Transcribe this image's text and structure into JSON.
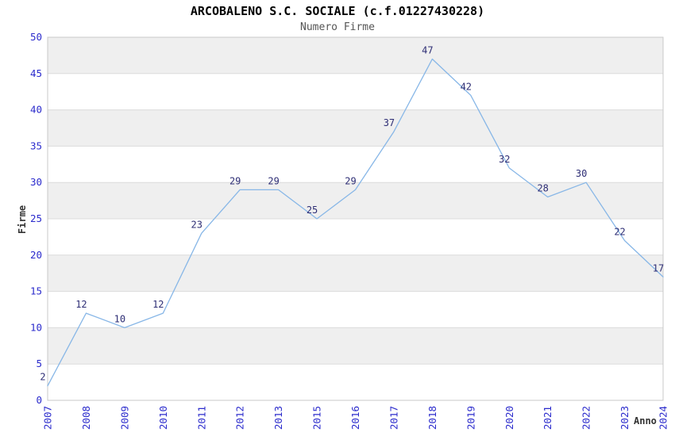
{
  "chart_data": {
    "type": "line",
    "title": "ARCOBALENO S.C. SOCIALE (c.f.01227430228)",
    "subtitle": "Numero Firme",
    "xlabel": "Anno",
    "ylabel": "Firme",
    "categories": [
      "2007",
      "2008",
      "2009",
      "2010",
      "2011",
      "2012",
      "2013",
      "2015",
      "2016",
      "2017",
      "2018",
      "2019",
      "2020",
      "2021",
      "2022",
      "2023",
      "2024"
    ],
    "values": [
      2,
      12,
      10,
      12,
      23,
      29,
      29,
      25,
      29,
      37,
      47,
      42,
      32,
      28,
      30,
      22,
      17
    ],
    "ylim": [
      0,
      50
    ],
    "ytick_step": 5,
    "grid": "alternating-horizontal-bands",
    "legend": "none",
    "data_labels_visible": true,
    "colors": {
      "line": "#88b7e7",
      "tick_labels": "#2b2bcc",
      "data_labels": "#2e2e75",
      "band": "#efefef",
      "gridline": "#dcdcdc",
      "plot_border": "#c8c8c8",
      "title": "#000000",
      "subtitle": "#555555",
      "axis_label": "#333333",
      "background": "#ffffff"
    }
  }
}
